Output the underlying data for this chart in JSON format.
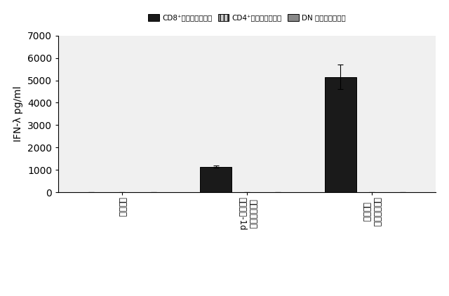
{
  "categories": [
    "制激無し",
    "単純ヘルペス\nウイルス-1d",
    "パラポックス\nウイルス"
  ],
  "cd8_values": [
    0,
    1150,
    5150
  ],
  "cd4_values": [
    0,
    0,
    0
  ],
  "dn_values": [
    0,
    0,
    0
  ],
  "cd8_errors": [
    0,
    50,
    550
  ],
  "cd4_errors": [
    0,
    0,
    0
  ],
  "dn_errors": [
    0,
    0,
    0
  ],
  "bar_width": 0.25,
  "ylim": [
    0,
    7000
  ],
  "yticks": [
    0,
    1000,
    2000,
    3000,
    4000,
    5000,
    6000,
    7000
  ],
  "ylabel": "IFN-λ pg/ml",
  "cd8_color": "#1a1a1a",
  "cd4_color": "#aaaaaa",
  "dn_color": "#555555",
  "cd8_hatch": "",
  "cd4_hatch": "|||",
  "dn_hatch": "===",
  "legend_cd8": "CD8⁺従来型樹状細胞",
  "legend_cd4": "CD4⁺従来型樹状細胞",
  "legend_dn": "DN 従来型樹状細胞",
  "bg_color": "#ffffff",
  "plot_bg": "#f0f0f0"
}
